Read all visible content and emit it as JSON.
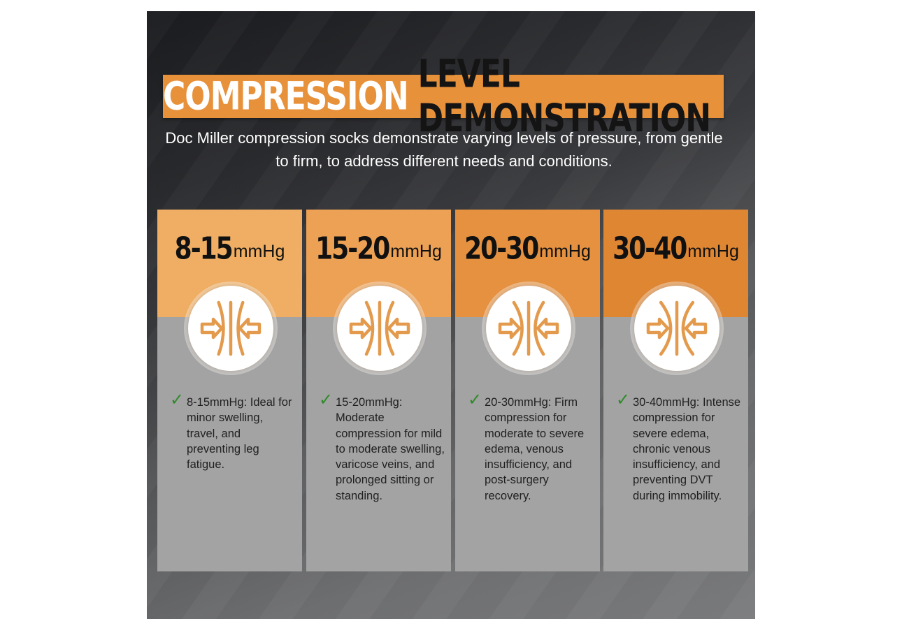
{
  "colors": {
    "banner_orange": "#e8913b",
    "card_gray": "#a3a3a3",
    "check_green": "#2f8a2a",
    "icon_orange": "#e39a4c"
  },
  "title": {
    "white_part": "COMPRESSION",
    "dark_part": "LEVEL DEMONSTRATION"
  },
  "subtitle": "Doc Miller compression socks demonstrate varying levels of pressure, from gentle to firm, to address different needs and conditions.",
  "cards": [
    {
      "range": "8-15",
      "unit": "mmHg",
      "top_color": "#efae63",
      "icon": "compression-arrows-icon",
      "description": "8-15mmHg: Ideal for minor swelling, travel, and preventing leg fatigue."
    },
    {
      "range": "15-20",
      "unit": "mmHg",
      "top_color": "#eda155",
      "icon": "compression-arrows-icon",
      "description": "15-20mmHg: Moderate compression for mild to moderate swelling, varicose veins, and prolonged sitting or standing."
    },
    {
      "range": "20-30",
      "unit": "mmHg",
      "top_color": "#e5913f",
      "icon": "compression-arrows-icon",
      "description": "20-30mmHg: Firm compression for moderate to severe edema, venous insufficiency, and post-surgery recovery."
    },
    {
      "range": "30-40",
      "unit": "mmHg",
      "top_color": "#df8633",
      "icon": "compression-arrows-icon",
      "description": "30-40mmHg: Intense compression for severe edema, chronic venous insufficiency, and preventing DVT during immobility."
    }
  ]
}
